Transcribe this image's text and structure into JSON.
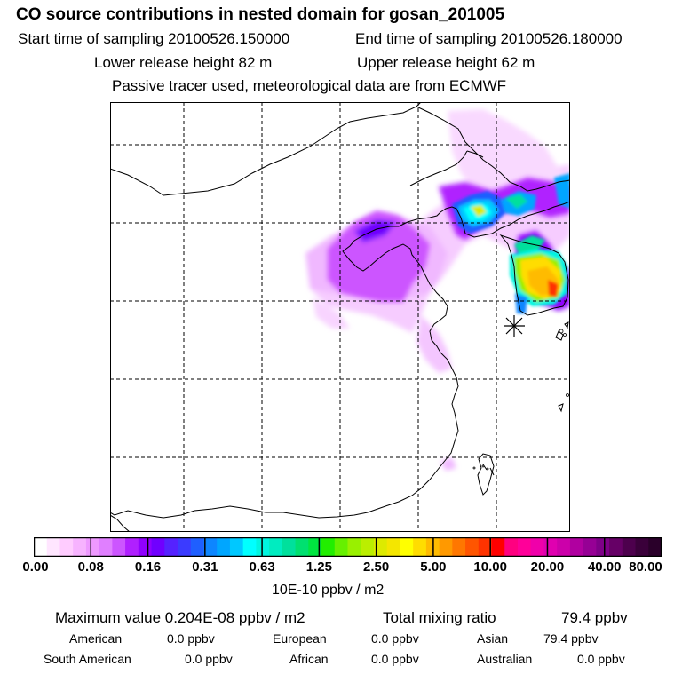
{
  "header": {
    "title": "CO  source contributions in nested domain for gosan_201005",
    "start_time": "Start time of sampling 20100526.150000",
    "end_time": "End time of sampling 20100526.180000",
    "lower_release": "Lower release height   82 m",
    "upper_release": "Upper release height   62 m",
    "tracer_note": "Passive tracer used, meteorological data are from ECMWF"
  },
  "colorbar": {
    "tick_labels": [
      "0.00",
      "0.08",
      "0.16",
      "0.31",
      "0.63",
      "1.25",
      "2.50",
      "5.00",
      "10.00",
      "20.00",
      "40.00",
      "80.00"
    ],
    "units": "10E-10 ppbv / m2",
    "colors": [
      "#ffffff",
      "#ffe6ff",
      "#ffccff",
      "#f7b3ff",
      "#ee99ff",
      "#e07fff",
      "#cc55ff",
      "#b020ff",
      "#9000ff",
      "#7000ff",
      "#5522ff",
      "#3b3bff",
      "#1f5fff",
      "#0d86ff",
      "#00a6ff",
      "#00c8ff",
      "#00ffff",
      "#00f5e0",
      "#00ecc0",
      "#00e09c",
      "#00e070",
      "#00e640",
      "#22ee00",
      "#66f000",
      "#99f000",
      "#bbee00",
      "#ddea00",
      "#f4e600",
      "#ffff00",
      "#ffdd00",
      "#ffbb00",
      "#ff9900",
      "#ff7700",
      "#ff5500",
      "#ff3300",
      "#ff0000",
      "#ff0080",
      "#ff0099",
      "#f000aa",
      "#e000b0",
      "#cc00aa",
      "#b000a0",
      "#960095",
      "#7e0088",
      "#660066",
      "#4d004d",
      "#3a003a",
      "#2a002a"
    ]
  },
  "stats": {
    "max_value": "Maximum value  0.204E-08 ppbv / m2",
    "total_mixing_label": "Total mixing ratio",
    "total_mixing_value": "79.4 ppbv",
    "american_label": "American",
    "american_value": "0.0 ppbv",
    "european_label": "European",
    "european_value": "0.0 ppbv",
    "asian_label": "Asian",
    "asian_value": "79.4 ppbv",
    "south_american_label": "South American",
    "south_american_value": "0.0 ppbv",
    "african_label": "African",
    "african_value": "0.0 ppbv",
    "australian_label": "Australian",
    "australian_value": "0.0 ppbv"
  }
}
